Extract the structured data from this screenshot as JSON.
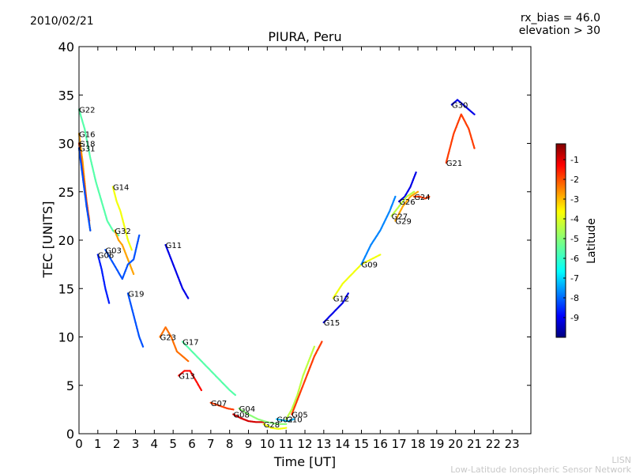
{
  "header": {
    "date": "2010/02/21",
    "rx_bias": "rx_bias = 46.0",
    "elevation": "elevation > 30"
  },
  "footer": {
    "org_short": "LISN",
    "org_long": "Low-Latitude Ionospheric Sensor Network"
  },
  "colors": {
    "axis": "#000000",
    "background": "#ffffff",
    "footer_text": "#c8c8c8",
    "colormap_jet": [
      "#00007f",
      "#0000ff",
      "#007fff",
      "#00ffff",
      "#7fff7f",
      "#ffff00",
      "#ff7f00",
      "#ff0000",
      "#7f0000"
    ]
  },
  "chart_data": {
    "type": "scatter",
    "title": "PIURA, Peru",
    "xlabel": "Time [UT]",
    "ylabel": "TEC [UNITS]",
    "xlim": [
      0,
      24
    ],
    "ylim": [
      0,
      40
    ],
    "xticks": [
      0,
      1,
      2,
      3,
      4,
      5,
      6,
      7,
      8,
      9,
      10,
      11,
      12,
      13,
      14,
      15,
      16,
      17,
      18,
      19,
      20,
      21,
      22,
      23
    ],
    "yticks": [
      0,
      5,
      10,
      15,
      20,
      25,
      30,
      35,
      40
    ],
    "grid": false,
    "colorbar": {
      "label": "Latitude",
      "range": [
        -10,
        -0.2
      ],
      "ticks": [
        -9,
        -8,
        -7,
        -6,
        -5,
        -4,
        -3,
        -2,
        -1
      ]
    },
    "series": [
      {
        "name": "G22",
        "color_value": -5.5,
        "x": [
          0.0,
          0.3,
          0.6,
          0.9,
          1.2,
          1.5,
          1.8,
          2.1
        ],
        "y": [
          33.5,
          31.5,
          28.5,
          26.0,
          24.0,
          22.0,
          21.0,
          20.5
        ]
      },
      {
        "name": "G16",
        "color_value": -3.0,
        "x": [
          0.0,
          0.2,
          0.4,
          0.6
        ],
        "y": [
          31.0,
          28.0,
          24.0,
          21.0
        ]
      },
      {
        "name": "G18",
        "color_value": -2.0,
        "x": [
          0.0,
          0.2,
          0.4,
          0.55
        ],
        "y": [
          30.0,
          27.0,
          24.0,
          22.0
        ]
      },
      {
        "name": "G31",
        "color_value": -8.0,
        "x": [
          0.0,
          0.2,
          0.4,
          0.6
        ],
        "y": [
          29.5,
          26.5,
          23.5,
          21.0
        ]
      },
      {
        "name": "G14",
        "color_value": -4.0,
        "x": [
          1.8,
          2.0,
          2.2,
          2.4,
          2.6,
          2.8
        ],
        "y": [
          25.5,
          24.0,
          23.0,
          21.5,
          20.0,
          19.0
        ]
      },
      {
        "name": "G32",
        "color_value": -3.0,
        "x": [
          1.9,
          2.1,
          2.3,
          2.5,
          2.7,
          2.9
        ],
        "y": [
          21.0,
          20.0,
          19.5,
          18.5,
          17.5,
          16.5
        ]
      },
      {
        "name": "G03",
        "color_value": -8.0,
        "x": [
          1.4,
          1.7,
          2.0,
          2.3,
          2.6,
          2.9,
          3.2
        ],
        "y": [
          19.0,
          18.0,
          17.0,
          16.0,
          17.5,
          18.0,
          20.5
        ]
      },
      {
        "name": "G06",
        "color_value": -8.5,
        "x": [
          1.0,
          1.2,
          1.4,
          1.6
        ],
        "y": [
          18.5,
          17.0,
          15.0,
          13.5
        ]
      },
      {
        "name": "G19",
        "color_value": -8.0,
        "x": [
          2.6,
          2.8,
          3.0,
          3.2,
          3.4
        ],
        "y": [
          14.5,
          13.0,
          11.5,
          10.0,
          9.0
        ]
      },
      {
        "name": "G11",
        "color_value": -9.0,
        "x": [
          4.6,
          4.9,
          5.2,
          5.5,
          5.8
        ],
        "y": [
          19.5,
          18.0,
          16.5,
          15.0,
          14.0
        ]
      },
      {
        "name": "G23",
        "color_value": -2.5,
        "x": [
          4.3,
          4.6,
          4.9,
          5.2,
          5.5,
          5.8
        ],
        "y": [
          10.0,
          11.0,
          10.0,
          8.5,
          8.0,
          7.5
        ]
      },
      {
        "name": "G13",
        "color_value": -1.5,
        "x": [
          5.3,
          5.6,
          5.9,
          6.2,
          6.5
        ],
        "y": [
          6.0,
          6.5,
          6.5,
          5.5,
          4.5
        ]
      },
      {
        "name": "G17",
        "color_value": -5.5,
        "x": [
          5.5,
          6.0,
          6.5,
          7.0,
          7.5,
          8.0,
          8.3
        ],
        "y": [
          9.5,
          8.5,
          7.5,
          6.5,
          5.5,
          4.5,
          4.0
        ]
      },
      {
        "name": "G07",
        "color_value": -2.0,
        "x": [
          7.0,
          7.3,
          7.6,
          7.9,
          8.2
        ],
        "y": [
          3.2,
          3.0,
          2.8,
          2.6,
          2.5
        ]
      },
      {
        "name": "G08",
        "color_value": -1.0,
        "x": [
          8.2,
          8.6,
          9.0,
          9.4,
          9.8
        ],
        "y": [
          2.0,
          1.6,
          1.3,
          1.2,
          1.2
        ]
      },
      {
        "name": "G04",
        "color_value": -5.0,
        "x": [
          8.5,
          9.0,
          9.5,
          10.0,
          10.5,
          11.0
        ],
        "y": [
          2.6,
          2.0,
          1.5,
          1.2,
          1.0,
          1.0
        ]
      },
      {
        "name": "G28",
        "color_value": -4.0,
        "x": [
          9.8,
          10.2,
          10.6,
          11.0
        ],
        "y": [
          1.0,
          0.6,
          0.5,
          0.6
        ]
      },
      {
        "name": "G02",
        "color_value": -7.0,
        "x": [
          10.5,
          10.8,
          11.1,
          11.4
        ],
        "y": [
          1.5,
          1.4,
          1.3,
          1.5
        ]
      },
      {
        "name": "G10",
        "color_value": -4.5,
        "x": [
          11.0,
          11.3,
          11.6,
          11.9,
          12.2,
          12.5
        ],
        "y": [
          1.5,
          2.5,
          4.0,
          6.0,
          7.5,
          9.0
        ]
      },
      {
        "name": "G05",
        "color_value": -2.0,
        "x": [
          11.3,
          11.6,
          11.9,
          12.2,
          12.5,
          12.9
        ],
        "y": [
          2.0,
          3.5,
          5.0,
          6.5,
          8.0,
          9.5
        ]
      },
      {
        "name": "G12",
        "color_value": -4.0,
        "x": [
          13.5,
          14.0,
          14.5,
          15.0,
          15.5,
          16.0
        ],
        "y": [
          14.0,
          15.5,
          16.5,
          17.5,
          18.0,
          18.5
        ]
      },
      {
        "name": "G15",
        "color_value": -9.0,
        "x": [
          13.0,
          13.5,
          14.0,
          14.3
        ],
        "y": [
          11.5,
          12.5,
          13.5,
          14.5
        ]
      },
      {
        "name": "G09",
        "color_value": -7.5,
        "x": [
          15.0,
          15.5,
          16.0,
          16.5,
          16.8
        ],
        "y": [
          17.5,
          19.5,
          21.0,
          23.0,
          24.5
        ]
      },
      {
        "name": "G26",
        "color_value": -9.0,
        "x": [
          17.0,
          17.3,
          17.6,
          17.9
        ],
        "y": [
          24.0,
          24.5,
          25.5,
          27.0
        ]
      },
      {
        "name": "G27",
        "color_value": -4.5,
        "x": [
          16.6,
          17.0,
          17.4,
          17.8
        ],
        "y": [
          22.5,
          23.5,
          24.5,
          25.0
        ]
      },
      {
        "name": "G29",
        "color_value": -3.0,
        "x": [
          16.8,
          17.2,
          17.6,
          18.0
        ],
        "y": [
          22.0,
          23.5,
          24.5,
          25.0
        ]
      },
      {
        "name": "G24",
        "color_value": -2.0,
        "x": [
          17.8,
          18.1,
          18.4,
          18.6
        ],
        "y": [
          24.5,
          24.5,
          24.3,
          24.5
        ]
      },
      {
        "name": "G21",
        "color_value": -2.0,
        "x": [
          19.5,
          19.9,
          20.3,
          20.7,
          21.0
        ],
        "y": [
          28.0,
          31.0,
          33.0,
          31.5,
          29.5
        ]
      },
      {
        "name": "G30",
        "color_value": -9.0,
        "x": [
          19.8,
          20.1,
          20.4,
          20.7,
          21.0
        ],
        "y": [
          34.0,
          34.5,
          34.0,
          33.5,
          33.0
        ]
      }
    ]
  }
}
